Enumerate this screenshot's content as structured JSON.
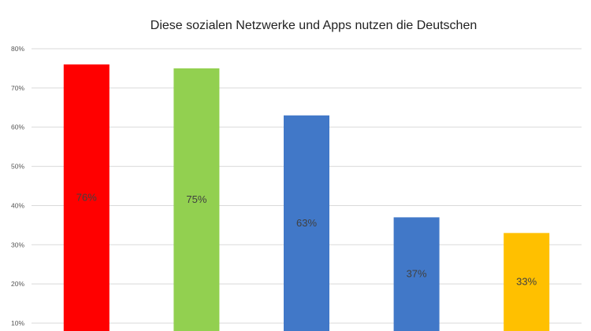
{
  "chart_data": {
    "type": "bar",
    "title": "Diese sozialen Netzwerke und Apps nutzen die Deutschen",
    "xlabel": "",
    "ylabel": "",
    "categories": [
      "",
      "",
      "",
      "",
      ""
    ],
    "values": [
      76,
      75,
      63,
      37,
      33
    ],
    "data_labels": [
      "76%",
      "75%",
      "63%",
      "37%",
      "33%"
    ],
    "colors": [
      "#ff0000",
      "#92d050",
      "#4178c8",
      "#4178c8",
      "#ffc000"
    ],
    "ylim": [
      8,
      80
    ],
    "yticks": [
      10,
      20,
      30,
      40,
      50,
      60,
      70,
      80
    ],
    "ytick_labels": [
      "10%",
      "20%",
      "30%",
      "40%",
      "50%",
      "60%",
      "70%",
      "80%"
    ],
    "grid": true,
    "legend": "none"
  }
}
